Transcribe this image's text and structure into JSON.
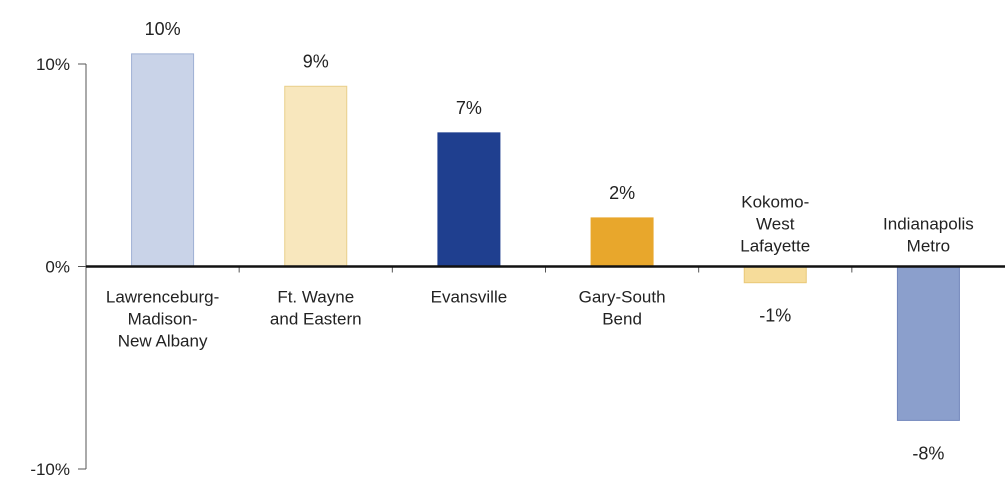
{
  "chart_data": {
    "type": "bar",
    "title": "",
    "xlabel": "",
    "ylabel": "",
    "ylim": [
      -10,
      10
    ],
    "yticks": [
      {
        "value": 10,
        "label": "10%"
      },
      {
        "value": 0,
        "label": "0%"
      },
      {
        "value": -10,
        "label": "-10%"
      }
    ],
    "categories": [
      {
        "name": "Lawrenceburg-Madison-New Albany",
        "lines": [
          "Lawrenceburg-",
          "Madison-",
          "New Albany"
        ]
      },
      {
        "name": "Ft. Wayne and Eastern",
        "lines": [
          "Ft. Wayne",
          "and Eastern"
        ]
      },
      {
        "name": "Evansville",
        "lines": [
          "Evansville"
        ]
      },
      {
        "name": "Gary-South Bend",
        "lines": [
          "Gary-South",
          "Bend"
        ]
      },
      {
        "name": "Kokomo-West Lafayette",
        "lines": [
          "Kokomo-",
          "West",
          "Lafayette"
        ]
      },
      {
        "name": "Indianapolis Metro",
        "lines": [
          "Indianapolis",
          "Metro"
        ]
      }
    ],
    "values": [
      10.5,
      8.9,
      6.6,
      2.4,
      -0.8,
      -7.6
    ],
    "value_labels": [
      "10%",
      "9%",
      "7%",
      "2%",
      "-1%",
      "-8%"
    ],
    "colors": [
      "#c9d3e8",
      "#f8e7bd",
      "#1f3f8f",
      "#e8a72c",
      "#f6dc9a",
      "#8b9fcc"
    ],
    "bar_borders": [
      "#9fb0d4",
      "#e9cf8a",
      "#1f3f8f",
      "#e8a72c",
      "#e9c878",
      "#7085bb"
    ],
    "grid": false,
    "legend": "none"
  }
}
